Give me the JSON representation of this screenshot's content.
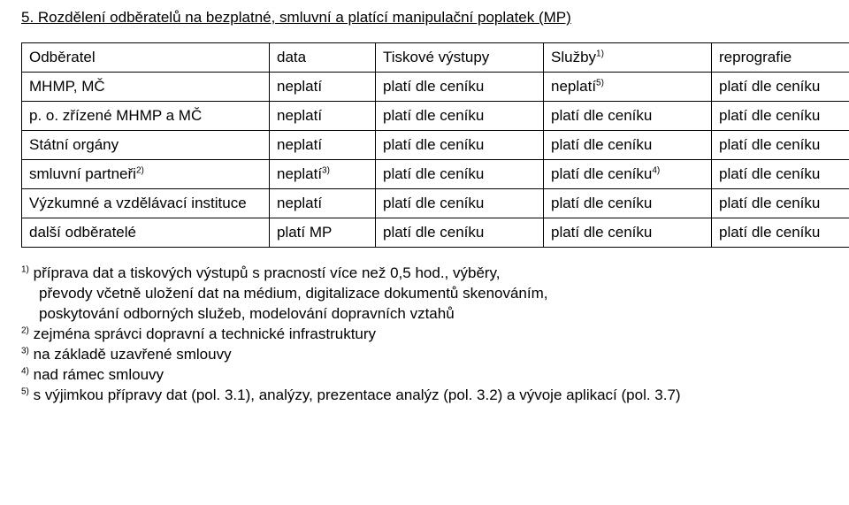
{
  "title": "5. Rozdělení odběratelů na bezplatné, smluvní a platící manipulační poplatek (MP)",
  "table": {
    "header": {
      "c0": "Odběratel",
      "c1": "data",
      "c2": "Tiskové výstupy",
      "c3_pre": "Služby",
      "c3_sup": "1)",
      "c4": "reprografie"
    },
    "rows": [
      {
        "c0": "MHMP, MČ",
        "c1": "neplatí",
        "c2": "platí dle ceníku",
        "c3_pre": "neplatí",
        "c3_sup": "5)",
        "c4": "platí dle ceníku"
      },
      {
        "c0": "p. o. zřízené MHMP a MČ",
        "c1": "neplatí",
        "c2": "platí dle ceníku",
        "c3": "platí dle ceníku",
        "c4": "platí dle ceníku"
      },
      {
        "c0": "Státní orgány",
        "c1": "neplatí",
        "c2": "platí dle ceníku",
        "c3": "platí dle ceníku",
        "c4": "platí dle ceníku"
      },
      {
        "c0_pre": "smluvní partneři",
        "c0_sup": "2)",
        "c1_pre": "neplatí",
        "c1_sup": "3)",
        "c2": "platí dle ceníku",
        "c3_pre": "platí dle ceníku",
        "c3_sup": "4)",
        "c4": "platí dle ceníku"
      },
      {
        "c0": "Výzkumné a vzdělávací instituce",
        "c1": "neplatí",
        "c2": "platí dle ceníku",
        "c3": "platí dle ceníku",
        "c4": "platí dle ceníku"
      },
      {
        "c0": "další odběratelé",
        "c1": "platí MP",
        "c2": "platí dle ceníku",
        "c3": "platí dle ceníku",
        "c4": "platí dle ceníku"
      }
    ]
  },
  "footnotes": {
    "n1_sup": "1)",
    "n1a": " příprava dat a tiskových výstupů s pracností více než 0,5 hod., výběry,",
    "n1b": "převody včetně uložení dat na médium, digitalizace dokumentů skenováním,",
    "n1c": "poskytování odborných služeb, modelování dopravních vztahů",
    "n2_sup": "2)",
    "n2": " zejména správci dopravní a technické infrastruktury",
    "n3_sup": "3)",
    "n3": " na základě uzavřené smlouvy",
    "n4_sup": "4)",
    "n4": " nad rámec smlouvy",
    "n5_sup": "5)",
    "n5": " s výjimkou přípravy dat (pol. 3.1), analýzy, prezentace analýz (pol. 3.2) a vývoje aplikací (pol. 3.7)"
  }
}
